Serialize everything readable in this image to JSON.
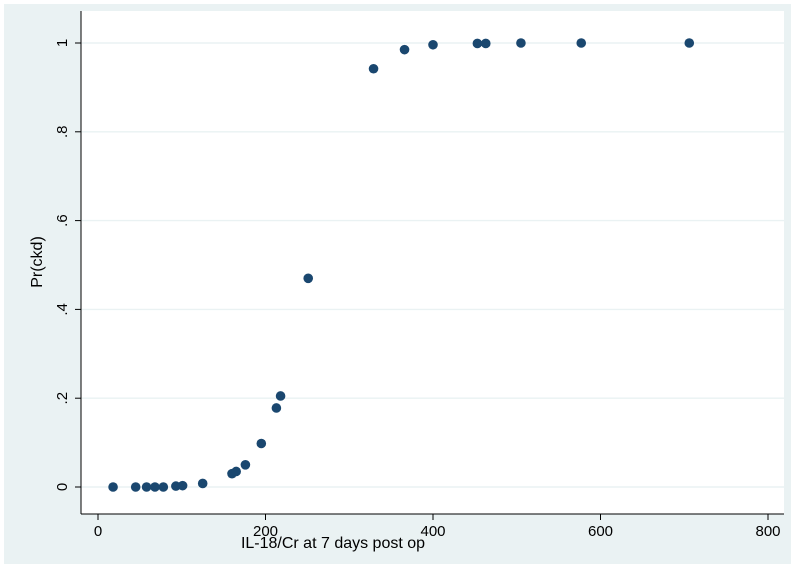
{
  "chart_data": {
    "type": "scatter",
    "title": "",
    "xlabel": "IL-18/Cr at 7 days post op",
    "ylabel": "Pr(ckd)",
    "xlim": [
      0,
      800
    ],
    "ylim": [
      0,
      1
    ],
    "x_ticks": [
      0,
      200,
      400,
      600,
      800
    ],
    "x_tick_labels": [
      "0",
      "200",
      "400",
      "600",
      "800"
    ],
    "y_ticks": [
      0,
      0.2,
      0.4,
      0.6,
      0.8,
      1
    ],
    "y_tick_labels": [
      "0",
      ".2",
      ".4",
      ".6",
      ".8",
      "1"
    ],
    "grid": "horizontal",
    "legend": "none",
    "colors": {
      "marker": "#1a476f",
      "plot_background": "#ffffff",
      "outer_background": "#eaf2f3",
      "grid": "#eaf2f3"
    },
    "series": [
      {
        "x": [
          18,
          45,
          58,
          68,
          78,
          93,
          101,
          125,
          160,
          165,
          176,
          195,
          213,
          218,
          251,
          329,
          366,
          400,
          453,
          463,
          505,
          577,
          706
        ],
        "y": [
          0.0,
          0.0,
          0.0,
          0.0,
          0.0,
          0.002,
          0.003,
          0.008,
          0.03,
          0.035,
          0.05,
          0.098,
          0.178,
          0.205,
          0.47,
          0.942,
          0.985,
          0.996,
          0.999,
          0.999,
          1.0,
          1.0,
          1.0
        ]
      }
    ]
  }
}
